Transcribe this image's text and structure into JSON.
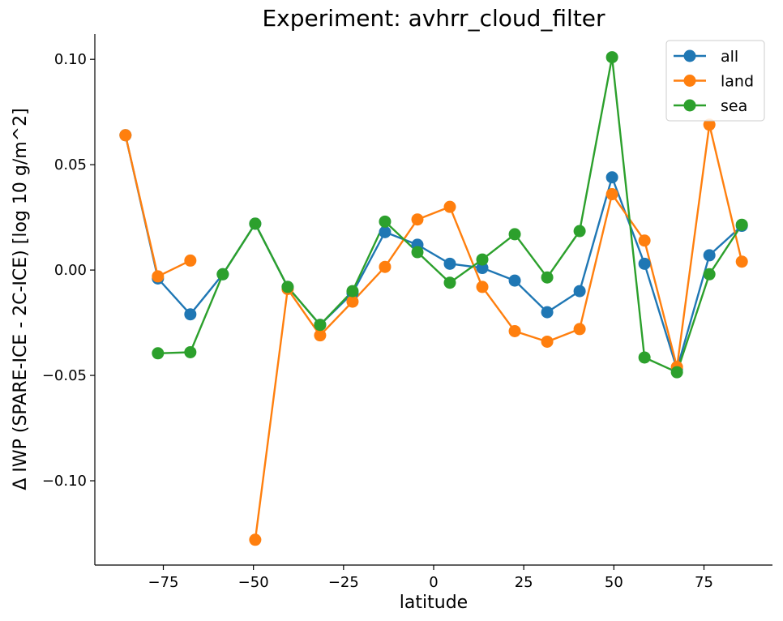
{
  "chart_data": {
    "type": "line",
    "title": "Experiment: avhrr_cloud_filter",
    "xlabel": "latitude",
    "ylabel": "Δ IWP (SPARE-ICE - 2C-ICE) [log 10 g/m^2]",
    "xlim": [
      -94,
      94
    ],
    "ylim": [
      -0.14,
      0.112
    ],
    "xticks": [
      -75,
      -50,
      -25,
      0,
      25,
      50,
      75
    ],
    "xtick_labels": [
      "−75",
      "−50",
      "−25",
      "0",
      "25",
      "50",
      "75"
    ],
    "yticks": [
      -0.1,
      -0.05,
      0.0,
      0.05,
      0.1
    ],
    "ytick_labels": [
      "−0.10",
      "−0.05",
      "0.00",
      "0.05",
      "0.10"
    ],
    "grid": false,
    "legend_position": "top-right",
    "series": [
      {
        "name": "all",
        "color": "#1f77b4",
        "points": [
          [
            -85.5,
            0.064
          ],
          [
            -76.5,
            -0.004
          ],
          [
            -67.5,
            -0.021
          ],
          [
            -58.5,
            -0.002
          ],
          [
            -49.5,
            0.022
          ],
          [
            -40.5,
            -0.008
          ],
          [
            -31.5,
            -0.026
          ],
          [
            -22.5,
            -0.011
          ],
          [
            -13.5,
            0.018
          ],
          [
            -4.5,
            0.012
          ],
          [
            4.5,
            0.003
          ],
          [
            13.5,
            0.001
          ],
          [
            22.5,
            -0.005
          ],
          [
            31.5,
            -0.02
          ],
          [
            40.5,
            -0.01
          ],
          [
            49.5,
            0.044
          ],
          [
            58.5,
            0.003
          ],
          [
            67.5,
            -0.047
          ],
          [
            76.5,
            0.007
          ],
          [
            85.5,
            0.021
          ]
        ]
      },
      {
        "name": "land",
        "color": "#ff7f0e",
        "segments": [
          [
            [
              -85.5,
              0.064
            ],
            [
              -76.5,
              -0.003
            ],
            [
              -67.5,
              0.0045
            ]
          ],
          [
            [
              -49.5,
              -0.128
            ],
            [
              -40.5,
              -0.009
            ],
            [
              -31.5,
              -0.031
            ],
            [
              -22.5,
              -0.015
            ],
            [
              -13.5,
              0.0015
            ],
            [
              -4.5,
              0.024
            ],
            [
              4.5,
              0.03
            ],
            [
              13.5,
              -0.008
            ],
            [
              22.5,
              -0.029
            ],
            [
              31.5,
              -0.034
            ],
            [
              40.5,
              -0.028
            ],
            [
              49.5,
              0.036
            ],
            [
              58.5,
              0.014
            ],
            [
              67.5,
              -0.046
            ],
            [
              76.5,
              0.069
            ],
            [
              85.5,
              0.004
            ]
          ]
        ]
      },
      {
        "name": "sea",
        "color": "#2ca02c",
        "points": [
          [
            -76.5,
            -0.0395
          ],
          [
            -67.5,
            -0.039
          ],
          [
            -58.5,
            -0.002
          ],
          [
            -49.5,
            0.022
          ],
          [
            -40.5,
            -0.008
          ],
          [
            -31.5,
            -0.026
          ],
          [
            -22.5,
            -0.01
          ],
          [
            -13.5,
            0.023
          ],
          [
            -4.5,
            0.0085
          ],
          [
            4.5,
            -0.006
          ],
          [
            13.5,
            0.005
          ],
          [
            22.5,
            0.017
          ],
          [
            31.5,
            -0.0035
          ],
          [
            40.5,
            0.0185
          ],
          [
            49.5,
            0.101
          ],
          [
            58.5,
            -0.0415
          ],
          [
            67.5,
            -0.0485
          ],
          [
            76.5,
            -0.002
          ],
          [
            85.5,
            0.0215
          ]
        ]
      }
    ]
  }
}
